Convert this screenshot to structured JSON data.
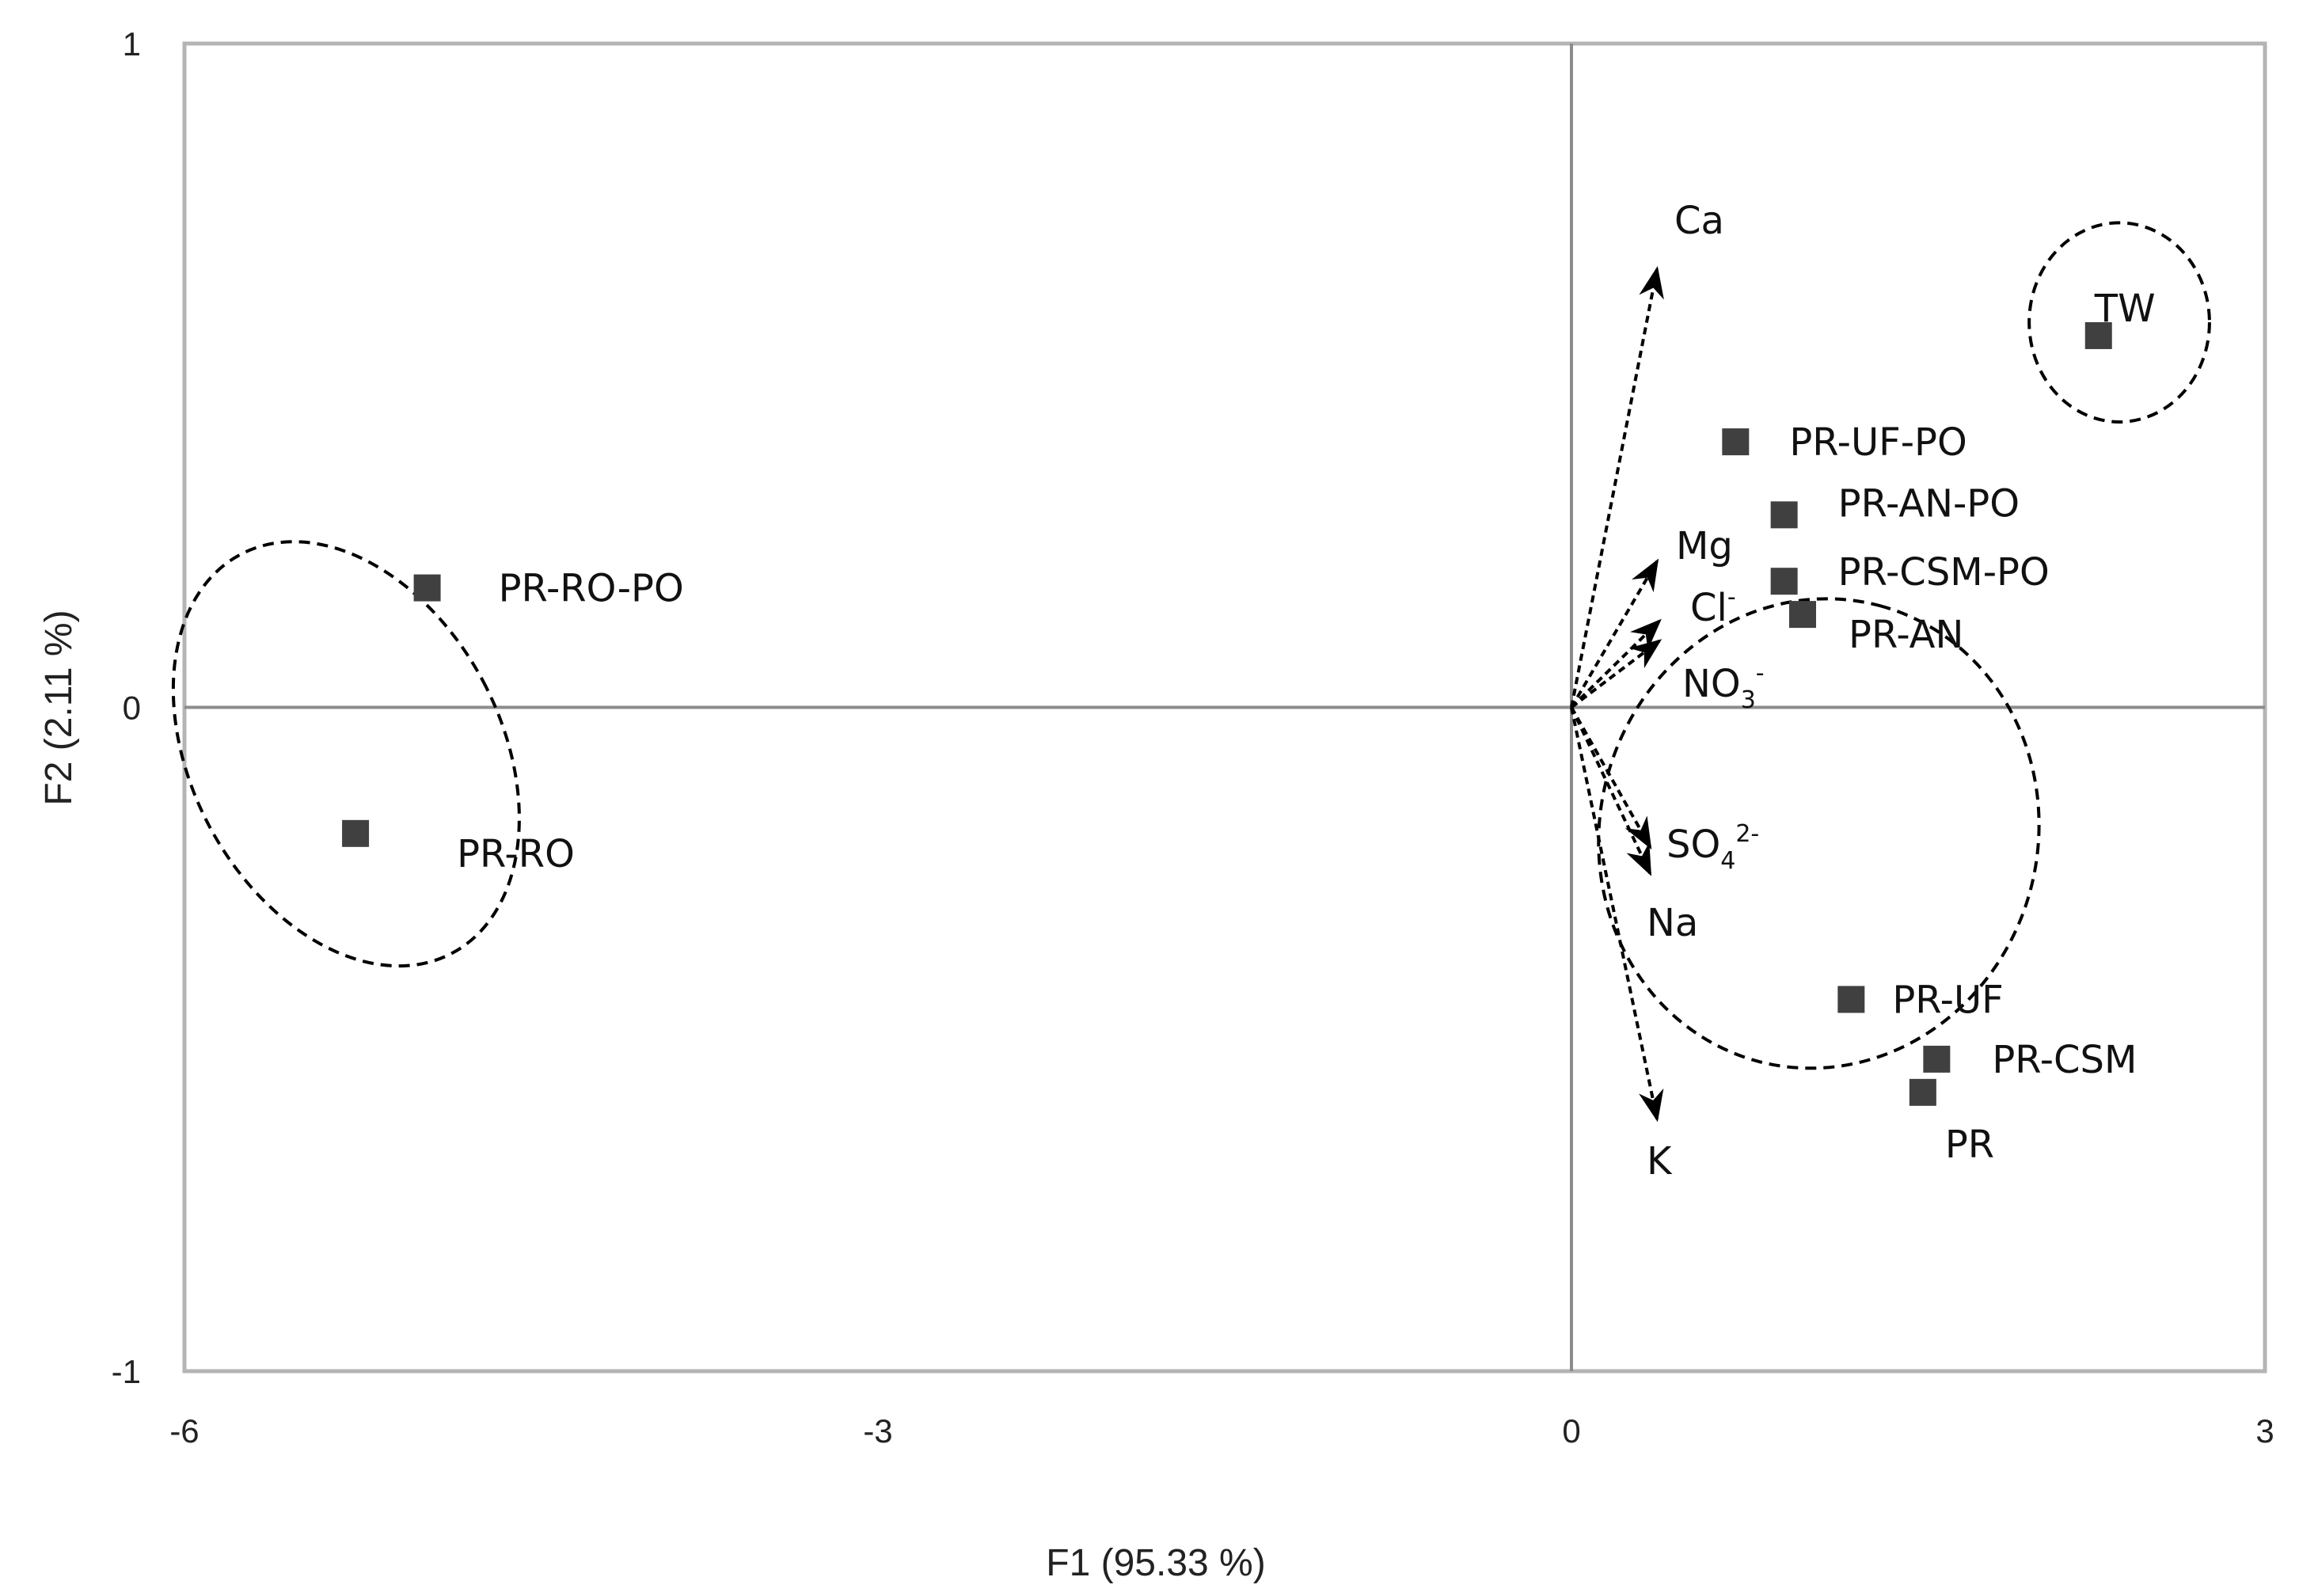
{
  "chart_data": {
    "type": "scatter",
    "xlabel": "F1 (95.33 %)",
    "ylabel": "F2 (2.11 %)",
    "xlim": [
      -6,
      3
    ],
    "ylim": [
      -1,
      1
    ],
    "x_ticks": [
      -6,
      -3,
      0,
      3
    ],
    "y_ticks": [
      -1,
      0,
      1
    ],
    "x_tick_labels": [
      "-6",
      "-3",
      "0",
      "3"
    ],
    "y_tick_labels": [
      "-1",
      "0",
      "1"
    ],
    "grid": false,
    "colors": {
      "frame": "#b4b4b4",
      "zero_axis": "#8c8c8c",
      "marker": "#404040",
      "line": "#000000"
    },
    "observations": [
      {
        "label": "TW",
        "x": 2.28,
        "y": 0.56
      },
      {
        "label": "PR-UF-PO",
        "x": 0.71,
        "y": 0.4
      },
      {
        "label": "PR-AN-PO",
        "x": 0.92,
        "y": 0.29
      },
      {
        "label": "PR-CSM-PO",
        "x": 0.92,
        "y": 0.19
      },
      {
        "label": "PR-AN",
        "x": 1.0,
        "y": 0.14
      },
      {
        "label": "PR-UF",
        "x": 1.21,
        "y": -0.44
      },
      {
        "label": "PR-CSM",
        "x": 1.58,
        "y": -0.53
      },
      {
        "label": "PR",
        "x": 1.52,
        "y": -0.58
      },
      {
        "label": "PR-RO-PO",
        "x": -4.95,
        "y": 0.18
      },
      {
        "label": "PR-RO",
        "x": -5.26,
        "y": -0.19
      }
    ],
    "variables": [
      {
        "label": "Ca",
        "x": 0.37,
        "y": 0.66
      },
      {
        "label": "Mg",
        "x": 0.37,
        "y": 0.22
      },
      {
        "label": "Cl",
        "sup": "-",
        "x": 0.38,
        "y": 0.13
      },
      {
        "label": "NO",
        "sub": "3",
        "sup": "-",
        "x": 0.38,
        "y": 0.1
      },
      {
        "label": "SO",
        "sub": "4",
        "sup": "2-",
        "x": 0.34,
        "y": -0.21
      },
      {
        "label": "Na",
        "x": 0.34,
        "y": -0.25
      },
      {
        "label": "K",
        "x": 0.37,
        "y": -0.62
      }
    ],
    "groups": [
      {
        "cx": 2.37,
        "cy": 0.58,
        "rx": 0.39,
        "ry": 0.15,
        "rotate_deg": 0
      },
      {
        "cx": -5.3,
        "cy": -0.07,
        "rx": 0.67,
        "ry": 0.34,
        "rotate_deg": -28
      },
      {
        "cx": 1.07,
        "cy": -0.19,
        "rx": 1.02,
        "ry": 0.33,
        "rotate_deg": -75
      }
    ]
  }
}
